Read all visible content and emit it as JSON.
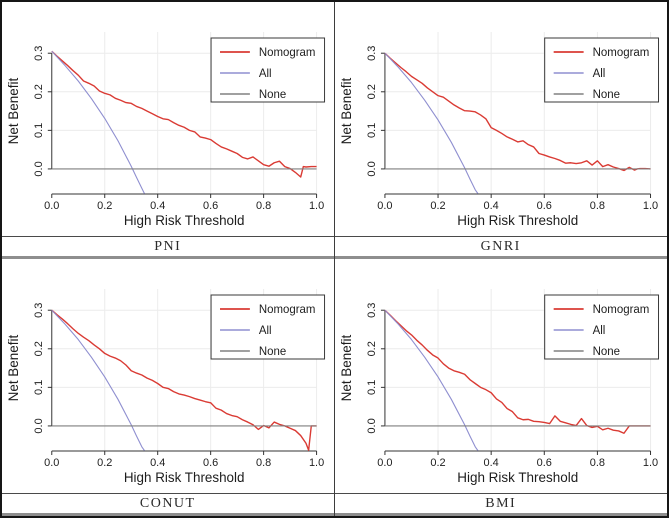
{
  "figure_caption_labels": [
    "PNI",
    "GNRI",
    "CONUT",
    "BMI"
  ],
  "chart_data": [
    {
      "type": "line",
      "title": "PNI",
      "xlabel": "High Risk Threshold",
      "ylabel": "Net Benefit",
      "xlim": [
        0,
        1
      ],
      "ylim": [
        -0.065,
        0.355
      ],
      "xticks": [
        0,
        0.2,
        0.4,
        0.6,
        0.8,
        1.0
      ],
      "xtick_labels": [
        "0.0",
        "0.2",
        "0.4",
        "0.6",
        "0.8",
        "1.0"
      ],
      "yticks": [
        0,
        0.1,
        0.2,
        0.3
      ],
      "ytick_labels": [
        "0.0",
        "0.1",
        "0.2",
        "0.3"
      ],
      "grid": true,
      "legend_position": "top-right",
      "legend_labels": [
        "Nomogram",
        "All",
        "None"
      ],
      "series": [
        {
          "name": "Nomogram",
          "color": "#da3b34",
          "x": [
            0,
            0.02,
            0.04,
            0.06,
            0.08,
            0.1,
            0.12,
            0.14,
            0.16,
            0.18,
            0.2,
            0.22,
            0.24,
            0.26,
            0.28,
            0.3,
            0.32,
            0.34,
            0.36,
            0.38,
            0.4,
            0.42,
            0.44,
            0.46,
            0.48,
            0.5,
            0.52,
            0.54,
            0.56,
            0.58,
            0.6,
            0.62,
            0.64,
            0.66,
            0.68,
            0.7,
            0.72,
            0.74,
            0.76,
            0.78,
            0.8,
            0.82,
            0.84,
            0.86,
            0.88,
            0.9,
            0.92,
            0.94,
            0.95,
            0.96,
            0.98,
            1.0
          ],
          "y": [
            0.305,
            0.292,
            0.28,
            0.268,
            0.255,
            0.243,
            0.228,
            0.222,
            0.215,
            0.202,
            0.196,
            0.192,
            0.183,
            0.178,
            0.172,
            0.17,
            0.162,
            0.157,
            0.15,
            0.143,
            0.136,
            0.13,
            0.128,
            0.12,
            0.113,
            0.108,
            0.1,
            0.096,
            0.083,
            0.08,
            0.076,
            0.066,
            0.057,
            0.052,
            0.046,
            0.04,
            0.03,
            0.026,
            0.031,
            0.021,
            0.011,
            0.007,
            0.016,
            0.02,
            0.006,
            0.001,
            -0.009,
            -0.021,
            0.006,
            0.005,
            0.006,
            0.006
          ]
        },
        {
          "name": "All",
          "color": "#8f8fd0",
          "x": [
            0,
            0.05,
            0.1,
            0.15,
            0.2,
            0.25,
            0.3,
            0.32,
            0.34,
            0.35
          ],
          "y": [
            0.305,
            0.268,
            0.228,
            0.182,
            0.131,
            0.073,
            0.007,
            -0.022,
            -0.05,
            -0.064
          ]
        },
        {
          "name": "None",
          "color": "#808080",
          "x": [
            0,
            1
          ],
          "y": [
            0,
            0
          ]
        }
      ]
    },
    {
      "type": "line",
      "title": "GNRI",
      "xlabel": "High Risk Threshold",
      "ylabel": "Net Benefit",
      "xlim": [
        0,
        1
      ],
      "ylim": [
        -0.065,
        0.355
      ],
      "xticks": [
        0,
        0.2,
        0.4,
        0.6,
        0.8,
        1.0
      ],
      "xtick_labels": [
        "0.0",
        "0.2",
        "0.4",
        "0.6",
        "0.8",
        "1.0"
      ],
      "yticks": [
        0,
        0.1,
        0.2,
        0.3
      ],
      "ytick_labels": [
        "0.0",
        "0.1",
        "0.2",
        "0.3"
      ],
      "grid": true,
      "legend_position": "top-right",
      "legend_labels": [
        "Nomogram",
        "All",
        "None"
      ],
      "series": [
        {
          "name": "Nomogram",
          "color": "#da3b34",
          "x": [
            0,
            0.02,
            0.04,
            0.06,
            0.08,
            0.1,
            0.12,
            0.14,
            0.16,
            0.18,
            0.2,
            0.22,
            0.24,
            0.26,
            0.28,
            0.3,
            0.32,
            0.34,
            0.36,
            0.38,
            0.4,
            0.42,
            0.44,
            0.46,
            0.48,
            0.5,
            0.52,
            0.54,
            0.56,
            0.58,
            0.6,
            0.62,
            0.64,
            0.66,
            0.68,
            0.7,
            0.72,
            0.74,
            0.76,
            0.78,
            0.8,
            0.82,
            0.84,
            0.86,
            0.88,
            0.9,
            0.92,
            0.94,
            0.95,
            0.96,
            0.98,
            1.0
          ],
          "y": [
            0.3,
            0.287,
            0.275,
            0.263,
            0.252,
            0.24,
            0.231,
            0.222,
            0.21,
            0.2,
            0.19,
            0.186,
            0.176,
            0.166,
            0.158,
            0.151,
            0.15,
            0.148,
            0.14,
            0.13,
            0.107,
            0.1,
            0.092,
            0.083,
            0.077,
            0.07,
            0.073,
            0.063,
            0.057,
            0.04,
            0.036,
            0.031,
            0.027,
            0.022,
            0.015,
            0.016,
            0.014,
            0.016,
            0.021,
            0.01,
            0.021,
            0.006,
            0.011,
            0.005,
            0.001,
            -0.004,
            0.004,
            -0.003,
            0.0,
            0.001,
            0.001,
            0.0
          ]
        },
        {
          "name": "All",
          "color": "#8f8fd0",
          "x": [
            0,
            0.05,
            0.1,
            0.15,
            0.2,
            0.25,
            0.3,
            0.32,
            0.34,
            0.35
          ],
          "y": [
            0.3,
            0.264,
            0.224,
            0.178,
            0.127,
            0.069,
            0.003,
            -0.026,
            -0.054,
            -0.064
          ]
        },
        {
          "name": "None",
          "color": "#808080",
          "x": [
            0,
            1
          ],
          "y": [
            0,
            0
          ]
        }
      ]
    },
    {
      "type": "line",
      "title": "CONUT",
      "xlabel": "High Risk Threshold",
      "ylabel": "Net Benefit",
      "xlim": [
        0,
        1
      ],
      "ylim": [
        -0.065,
        0.355
      ],
      "xticks": [
        0,
        0.2,
        0.4,
        0.6,
        0.8,
        1.0
      ],
      "xtick_labels": [
        "0.0",
        "0.2",
        "0.4",
        "0.6",
        "0.8",
        "1.0"
      ],
      "yticks": [
        0,
        0.1,
        0.2,
        0.3
      ],
      "ytick_labels": [
        "0.0",
        "0.1",
        "0.2",
        "0.3"
      ],
      "grid": true,
      "legend_position": "top-right",
      "legend_labels": [
        "Nomogram",
        "All",
        "None"
      ],
      "series": [
        {
          "name": "Nomogram",
          "color": "#da3b34",
          "x": [
            0,
            0.02,
            0.04,
            0.06,
            0.08,
            0.1,
            0.12,
            0.14,
            0.16,
            0.18,
            0.2,
            0.22,
            0.24,
            0.26,
            0.28,
            0.3,
            0.32,
            0.34,
            0.36,
            0.38,
            0.4,
            0.42,
            0.44,
            0.46,
            0.48,
            0.5,
            0.52,
            0.54,
            0.56,
            0.58,
            0.6,
            0.62,
            0.64,
            0.66,
            0.68,
            0.7,
            0.72,
            0.74,
            0.76,
            0.78,
            0.8,
            0.82,
            0.84,
            0.86,
            0.88,
            0.9,
            0.92,
            0.94,
            0.96,
            0.97,
            0.98,
            1.0
          ],
          "y": [
            0.3,
            0.288,
            0.277,
            0.265,
            0.252,
            0.24,
            0.23,
            0.221,
            0.21,
            0.2,
            0.188,
            0.181,
            0.176,
            0.169,
            0.158,
            0.143,
            0.137,
            0.132,
            0.124,
            0.118,
            0.11,
            0.1,
            0.097,
            0.089,
            0.083,
            0.08,
            0.076,
            0.071,
            0.067,
            0.063,
            0.06,
            0.046,
            0.041,
            0.032,
            0.027,
            0.024,
            0.016,
            0.01,
            0.003,
            -0.009,
            0.001,
            -0.005,
            0.01,
            0.004,
            0.0,
            -0.006,
            -0.012,
            -0.025,
            -0.045,
            -0.063,
            0.0,
            0.0
          ]
        },
        {
          "name": "All",
          "color": "#8f8fd0",
          "x": [
            0,
            0.05,
            0.1,
            0.15,
            0.2,
            0.25,
            0.3,
            0.32,
            0.34,
            0.35
          ],
          "y": [
            0.3,
            0.264,
            0.224,
            0.178,
            0.127,
            0.069,
            0.003,
            -0.026,
            -0.054,
            -0.064
          ]
        },
        {
          "name": "None",
          "color": "#808080",
          "x": [
            0,
            1
          ],
          "y": [
            0,
            0
          ]
        }
      ]
    },
    {
      "type": "line",
      "title": "BMI",
      "xlabel": "High Risk Threshold",
      "ylabel": "Net Benefit",
      "xlim": [
        0,
        1
      ],
      "ylim": [
        -0.065,
        0.355
      ],
      "xticks": [
        0,
        0.2,
        0.4,
        0.6,
        0.8,
        1.0
      ],
      "xtick_labels": [
        "0.0",
        "0.2",
        "0.4",
        "0.6",
        "0.8",
        "1.0"
      ],
      "yticks": [
        0,
        0.1,
        0.2,
        0.3
      ],
      "ytick_labels": [
        "0.0",
        "0.1",
        "0.2",
        "0.3"
      ],
      "grid": true,
      "legend_position": "top-right",
      "legend_labels": [
        "Nomogram",
        "All",
        "None"
      ],
      "series": [
        {
          "name": "Nomogram",
          "color": "#da3b34",
          "x": [
            0,
            0.02,
            0.04,
            0.06,
            0.08,
            0.1,
            0.12,
            0.14,
            0.16,
            0.18,
            0.2,
            0.22,
            0.24,
            0.26,
            0.28,
            0.3,
            0.32,
            0.34,
            0.36,
            0.38,
            0.4,
            0.42,
            0.44,
            0.46,
            0.48,
            0.5,
            0.52,
            0.54,
            0.56,
            0.58,
            0.6,
            0.62,
            0.64,
            0.66,
            0.68,
            0.7,
            0.72,
            0.74,
            0.76,
            0.78,
            0.8,
            0.82,
            0.84,
            0.86,
            0.88,
            0.9,
            0.92,
            0.94,
            0.95,
            0.96,
            0.98,
            1.0
          ],
          "y": [
            0.3,
            0.287,
            0.273,
            0.26,
            0.247,
            0.236,
            0.222,
            0.21,
            0.196,
            0.184,
            0.176,
            0.161,
            0.15,
            0.143,
            0.139,
            0.134,
            0.12,
            0.11,
            0.1,
            0.094,
            0.086,
            0.07,
            0.061,
            0.045,
            0.037,
            0.021,
            0.016,
            0.017,
            0.012,
            0.011,
            0.009,
            0.006,
            0.026,
            0.012,
            0.008,
            0.004,
            0.001,
            0.019,
            0.001,
            -0.004,
            -0.001,
            -0.01,
            -0.006,
            -0.011,
            -0.013,
            -0.019,
            0.0,
            0.0,
            0.0,
            0.0,
            0.0,
            0.0
          ]
        },
        {
          "name": "All",
          "color": "#8f8fd0",
          "x": [
            0,
            0.05,
            0.1,
            0.15,
            0.2,
            0.25,
            0.3,
            0.32,
            0.34,
            0.35
          ],
          "y": [
            0.3,
            0.264,
            0.224,
            0.178,
            0.127,
            0.069,
            0.003,
            -0.026,
            -0.054,
            -0.064
          ]
        },
        {
          "name": "None",
          "color": "#808080",
          "x": [
            0,
            1
          ],
          "y": [
            0,
            0
          ]
        }
      ]
    }
  ],
  "style_colors": {
    "nomogram": "#da3b34",
    "all": "#8f8fd0",
    "none": "#808080",
    "gridline": "#ececec",
    "axis": "#333333"
  }
}
